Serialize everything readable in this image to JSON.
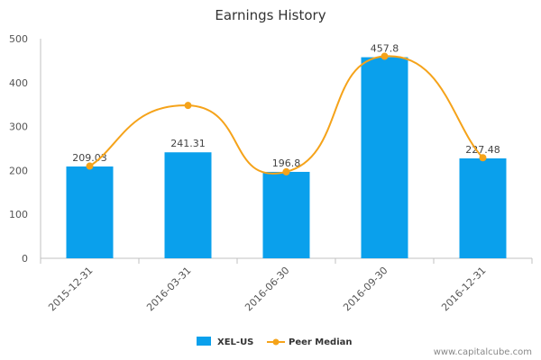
{
  "chart_data": {
    "type": "bar",
    "title": "Earnings History",
    "categories": [
      "2015-12-31",
      "2016-03-31",
      "2016-06-30",
      "2016-09-30",
      "2016-12-31"
    ],
    "series": [
      {
        "name": "XEL-US",
        "kind": "bar",
        "color": "#0aa0ec",
        "values": [
          209.03,
          241.31,
          196.8,
          457.8,
          227.48
        ],
        "labels": [
          "209.03",
          "241.31",
          "196.8",
          "457.8",
          "227.48"
        ]
      },
      {
        "name": "Peer Median",
        "kind": "line",
        "color": "#f5a31a",
        "values": [
          210,
          348,
          197,
          460,
          229
        ]
      }
    ],
    "yticks": [
      "0",
      "100",
      "200",
      "300",
      "400",
      "500"
    ],
    "ylim": [
      0,
      500
    ],
    "xlabel": "",
    "ylabel": "",
    "grid": false,
    "legend_position": "bottom-center"
  },
  "footer": {
    "credit": "www.capitalcube.com"
  }
}
